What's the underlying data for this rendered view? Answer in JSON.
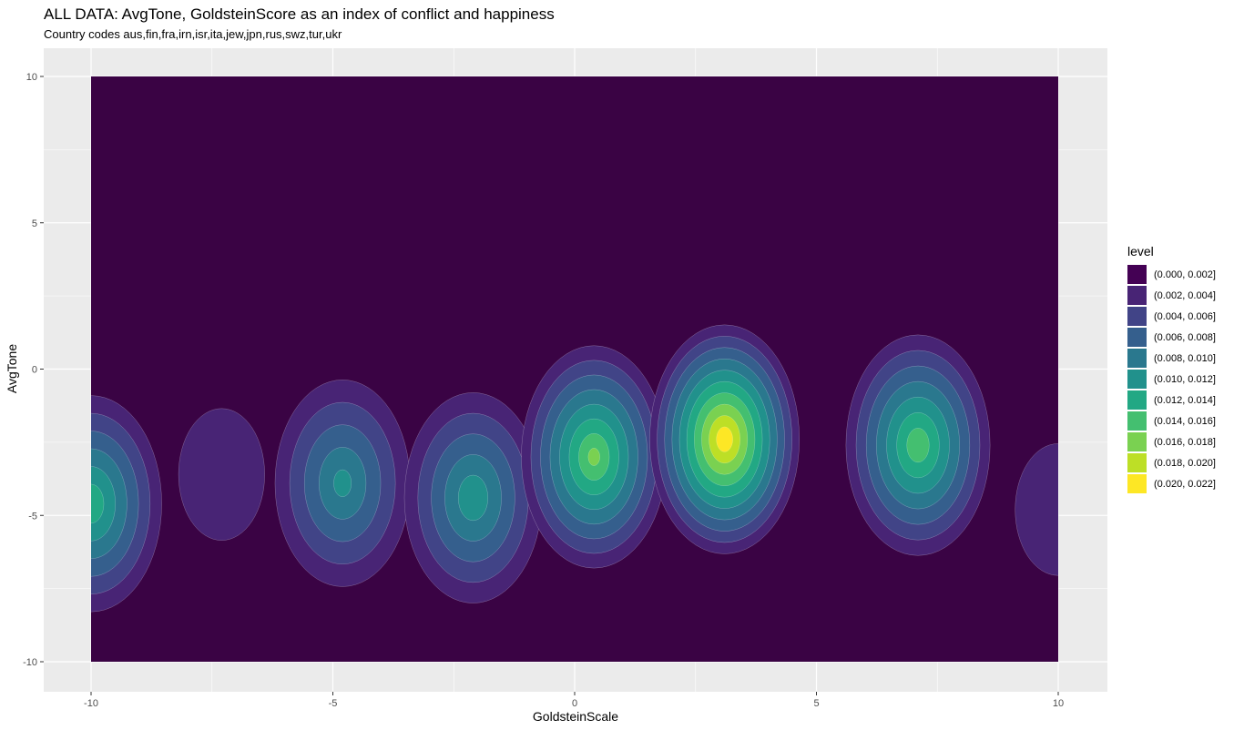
{
  "chart_data": {
    "type": "contour",
    "title": "ALL DATA: AvgTone, GoldsteinScore as an index of conflict and happiness",
    "subtitle": "Country codes aus,fin,fra,irn,isr,ita,jew,jpn,rus,swz,tur,ukr",
    "xlabel": "GoldsteinScale",
    "ylabel": "AvgTone",
    "xlim": [
      -10,
      10
    ],
    "ylim": [
      -10,
      10
    ],
    "x_ticks": [
      "-10",
      "-5",
      "0",
      "5",
      "10"
    ],
    "y_ticks": [
      "10",
      "5",
      "0",
      "-5",
      "-10"
    ],
    "grid": true,
    "legend_title": "level",
    "legend_position": "right",
    "levels": [
      {
        "label": "(0.000, 0.002]",
        "color": "#440154"
      },
      {
        "label": "(0.002, 0.004]",
        "color": "#482475"
      },
      {
        "label": "(0.004, 0.006]",
        "color": "#414487"
      },
      {
        "label": "(0.006, 0.008]",
        "color": "#355f8d"
      },
      {
        "label": "(0.008, 0.010]",
        "color": "#2a788e"
      },
      {
        "label": "(0.010, 0.012]",
        "color": "#21918c"
      },
      {
        "label": "(0.012, 0.014]",
        "color": "#22a884"
      },
      {
        "label": "(0.014, 0.016]",
        "color": "#44bf70"
      },
      {
        "label": "(0.016, 0.018]",
        "color": "#7ad151"
      },
      {
        "label": "(0.018, 0.020]",
        "color": "#bddf26"
      },
      {
        "label": "(0.020, 0.022]",
        "color": "#fde725"
      }
    ],
    "density_peaks": [
      {
        "x": -10.0,
        "y": -4.6,
        "peak_level": 0.013
      },
      {
        "x": -7.3,
        "y": -3.6,
        "peak_level": 0.003
      },
      {
        "x": -4.8,
        "y": -3.9,
        "peak_level": 0.01
      },
      {
        "x": -2.1,
        "y": -4.4,
        "peak_level": 0.011
      },
      {
        "x": 0.4,
        "y": -3.0,
        "peak_level": 0.016
      },
      {
        "x": 3.1,
        "y": -2.4,
        "peak_level": 0.021
      },
      {
        "x": 7.1,
        "y": -2.6,
        "peak_level": 0.015
      },
      {
        "x": 10.0,
        "y": -4.8,
        "peak_level": 0.003
      }
    ]
  },
  "colors": {
    "panel_background": "#ebebeb",
    "grid_major": "#ffffff",
    "background_fill": "#3a0344"
  }
}
